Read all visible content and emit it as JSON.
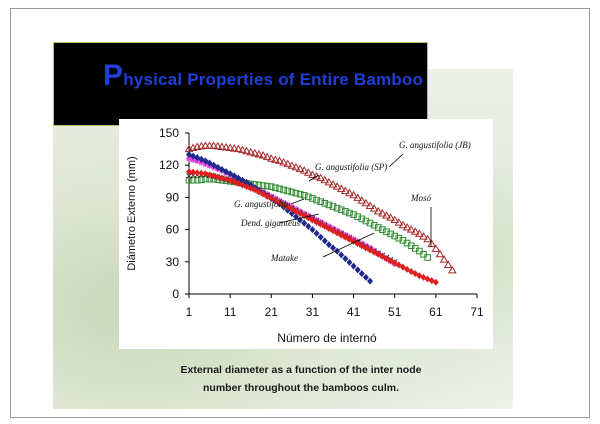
{
  "title": {
    "first_letter": "P",
    "rest": "hysical Properties of  Entire Bamboo"
  },
  "caption": {
    "line1": "External diameter as a function of  the inter node",
    "line2": "number throughout the bamboos culm."
  },
  "chart_data": {
    "type": "scatter",
    "xlabel": "Número de internó",
    "ylabel": "Diámetro Externo (mm)",
    "xlim": [
      1,
      71
    ],
    "ylim": [
      0,
      150
    ],
    "xticks": [
      1,
      11,
      21,
      31,
      41,
      51,
      61,
      71
    ],
    "yticks": [
      0,
      30,
      60,
      90,
      120,
      150
    ],
    "grid": false,
    "series": [
      {
        "name": "G. angustifolia (JB)",
        "marker": "triangle-open",
        "color": "#a52a2a",
        "x": [
          1,
          3,
          5,
          7,
          9,
          11,
          13,
          15,
          17,
          19,
          21,
          23,
          25,
          27,
          29,
          31,
          33,
          35,
          37,
          39,
          41,
          43,
          45,
          47,
          49,
          51,
          53,
          55,
          57,
          59,
          61,
          63,
          65
        ],
        "y": [
          135,
          137,
          138,
          138,
          137,
          136,
          135,
          133,
          131,
          129,
          126,
          124,
          121,
          118,
          115,
          111,
          108,
          104,
          100,
          96,
          92,
          87,
          82,
          77,
          73,
          69,
          64,
          60,
          56,
          51,
          42,
          32,
          22
        ]
      },
      {
        "name": "G. angustifolia (SP)",
        "marker": "square-open",
        "color": "#2e8b2e",
        "x": [
          1,
          3,
          5,
          7,
          9,
          11,
          13,
          15,
          17,
          19,
          21,
          23,
          25,
          27,
          29,
          31,
          33,
          35,
          37,
          39,
          41,
          43,
          45,
          47,
          49,
          51,
          53,
          55,
          57,
          59
        ],
        "y": [
          106,
          106,
          107,
          107,
          106,
          105,
          104,
          103,
          102,
          101,
          100,
          98,
          96,
          94,
          92,
          89,
          86,
          83,
          80,
          77,
          74,
          70,
          66,
          62,
          58,
          54,
          50,
          45,
          40,
          34
        ]
      },
      {
        "name": "Mosó",
        "marker": "star",
        "color": "#e040e0",
        "x": [
          1,
          3,
          5,
          7,
          9,
          11,
          13,
          15,
          17,
          19,
          21,
          23,
          25,
          27,
          29,
          31,
          33,
          35,
          37,
          39,
          41,
          43,
          45,
          47,
          49,
          51
        ],
        "y": [
          126,
          124,
          121,
          118,
          115,
          111,
          107,
          103,
          99,
          95,
          91,
          87,
          83,
          79,
          75,
          71,
          67,
          63,
          59,
          55,
          51,
          47,
          43,
          38,
          33,
          28
        ]
      },
      {
        "name": "G. angustifolia",
        "marker": "cross",
        "color": "#333333",
        "x": [
          1,
          3,
          5,
          7,
          9,
          11,
          13,
          15,
          17,
          19,
          21,
          23,
          25,
          27,
          29,
          31,
          33,
          35,
          37,
          39,
          41,
          43,
          45,
          47,
          49,
          51
        ],
        "y": [
          110,
          111,
          111,
          110,
          108,
          106,
          104,
          101,
          98,
          94,
          90,
          86,
          82,
          78,
          74,
          70,
          66,
          62,
          58,
          54,
          50,
          46,
          42,
          38,
          34,
          30
        ]
      },
      {
        "name": "Dend. giganteus",
        "marker": "diamond",
        "color": "#1f2a8a",
        "x": [
          1,
          3,
          5,
          7,
          9,
          11,
          13,
          15,
          17,
          19,
          21,
          23,
          25,
          27,
          29,
          31,
          33,
          35,
          37,
          39,
          41,
          43,
          45
        ],
        "y": [
          130,
          127,
          124,
          120,
          116,
          112,
          108,
          104,
          99,
          94,
          89,
          84,
          78,
          72,
          66,
          60,
          53,
          46,
          40,
          33,
          26,
          19,
          12
        ]
      },
      {
        "name": "Matake",
        "marker": "diamond",
        "color": "#e02020",
        "x": [
          1,
          3,
          5,
          7,
          9,
          11,
          13,
          15,
          17,
          19,
          21,
          23,
          25,
          27,
          29,
          31,
          33,
          35,
          37,
          39,
          41,
          43,
          45,
          47,
          49,
          51,
          53,
          55,
          57,
          59,
          61
        ],
        "y": [
          114,
          113,
          112,
          110,
          108,
          106,
          103,
          100,
          97,
          93,
          89,
          85,
          81,
          77,
          73,
          69,
          65,
          61,
          57,
          53,
          49,
          45,
          41,
          37,
          33,
          29,
          25,
          21,
          17,
          14,
          11
        ]
      }
    ],
    "annotations": [
      "G. angustifolia (JB)",
      "G. angustifolia (SP)",
      "Mosó",
      "G. angustifolia",
      "Dend. giganteus",
      "Matake"
    ]
  }
}
